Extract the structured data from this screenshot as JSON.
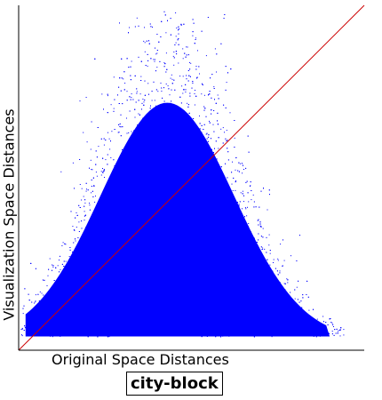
{
  "chart_data": {
    "type": "scatter",
    "title": "",
    "xlabel": "Original Space Distances",
    "ylabel": "Visualization Space Distances",
    "caption": "city-block",
    "xlim": [
      0,
      1
    ],
    "ylim": [
      0,
      1
    ],
    "series": [
      {
        "kind": "points",
        "color": "#0000ff",
        "description_density": "dense cloud of pairwise distance points",
        "envelope": {
          "x_min": 0.0,
          "x_max": 0.94,
          "y_min": 0.04,
          "peak_x": 0.43,
          "peak_y": 0.92
        }
      },
      {
        "kind": "reference-line",
        "color": "#cc0000",
        "x": [
          0,
          1
        ],
        "y": [
          0,
          1
        ]
      }
    ]
  }
}
